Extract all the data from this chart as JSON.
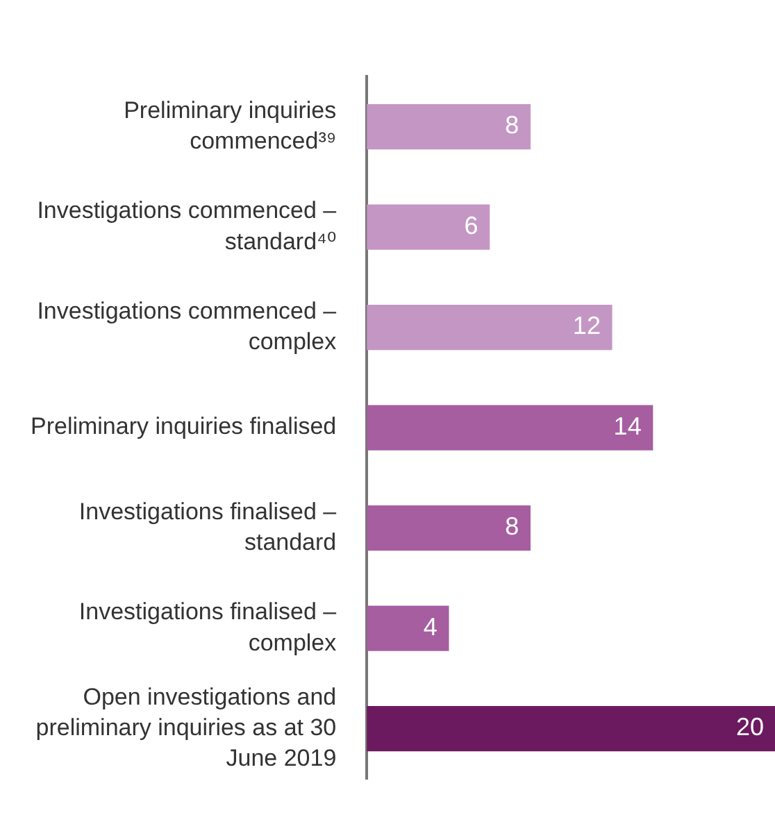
{
  "chart_data": {
    "type": "bar",
    "orientation": "horizontal",
    "categories": [
      "Preliminary inquiries commenced³⁹",
      "Investigations commenced – standard⁴⁰",
      "Investigations commenced – complex",
      "Preliminary inquiries finalised",
      "Investigations finalised – standard",
      "Investigations finalised – complex",
      "Open investigations and preliminary inquiries as at 30 June 2019"
    ],
    "values": [
      8,
      6,
      12,
      14,
      8,
      4,
      20
    ],
    "colors": [
      "#c496c4",
      "#c496c4",
      "#c496c4",
      "#a65ea0",
      "#a65ea0",
      "#a65ea0",
      "#6c1a5f"
    ],
    "data_labels": true,
    "tick_labels": "y",
    "grid": false,
    "legend": false
  }
}
